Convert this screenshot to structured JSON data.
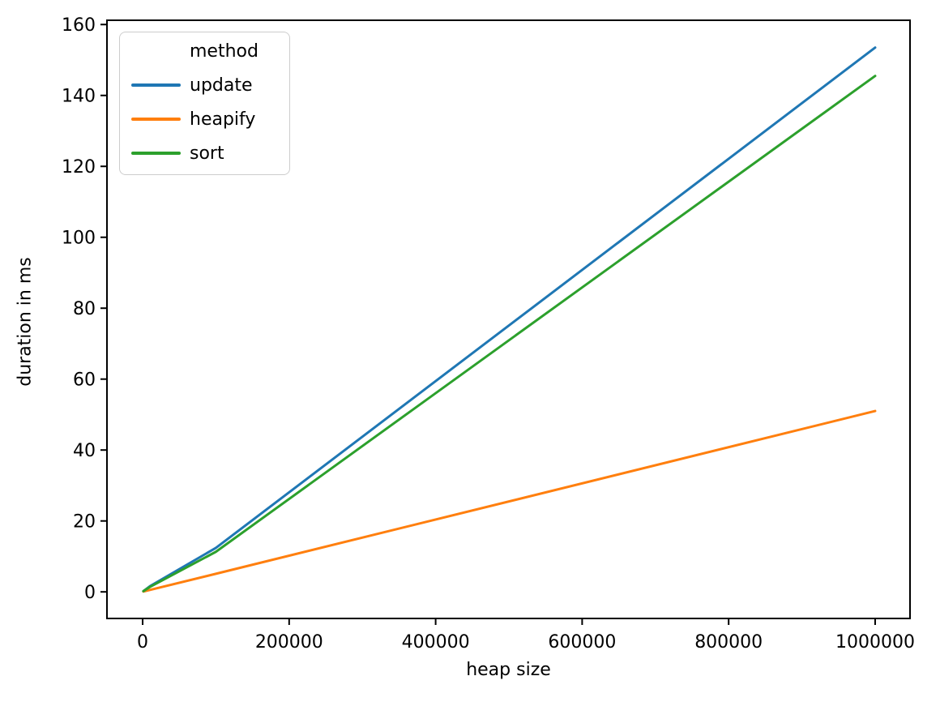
{
  "chart_data": {
    "type": "line",
    "title": "",
    "xlabel": "heap size",
    "ylabel": "duration in ms",
    "legend_title": "method",
    "legend_position": "upper left",
    "grid": false,
    "background_color": "#ffffff",
    "axis_color": "#000000",
    "text_color": "#000000",
    "x": [
      1000,
      10000,
      100000,
      1000000
    ],
    "series": [
      {
        "name": "update",
        "color": "#1f77b4",
        "values": [
          0.2,
          1.6,
          12.4,
          153.5
        ]
      },
      {
        "name": "heapify",
        "color": "#ff7f0e",
        "values": [
          0.1,
          0.55,
          5.1,
          51.0
        ]
      },
      {
        "name": "sort",
        "color": "#2ca02c",
        "values": [
          0.2,
          1.4,
          11.3,
          145.5
        ]
      }
    ],
    "xticks": {
      "values": [
        0,
        200000,
        400000,
        600000,
        800000,
        1000000
      ],
      "labels": [
        "0",
        "200000",
        "400000",
        "600000",
        "800000",
        "1000000"
      ]
    },
    "yticks": {
      "values": [
        0,
        20,
        40,
        60,
        80,
        100,
        120,
        140,
        160
      ],
      "labels": [
        "0",
        "20",
        "40",
        "60",
        "80",
        "100",
        "120",
        "140",
        "160"
      ]
    },
    "xlim": [
      -48700,
      1047600
    ],
    "ylim": [
      -7.5,
      161.2
    ]
  }
}
